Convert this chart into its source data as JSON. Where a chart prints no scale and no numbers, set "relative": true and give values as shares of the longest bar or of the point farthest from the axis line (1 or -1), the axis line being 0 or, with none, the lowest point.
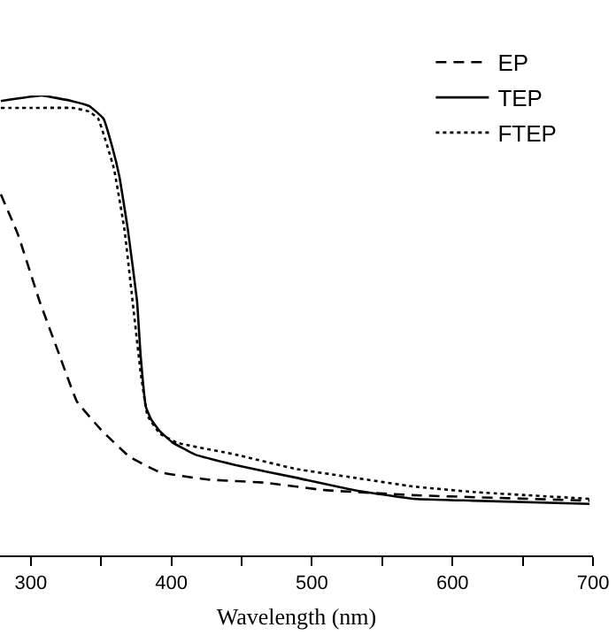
{
  "chart_data": {
    "type": "line",
    "relative": true,
    "xlabel": "Wavelength (nm)",
    "xlim": [
      278,
      700
    ],
    "xticks": [
      300,
      {
        "value": 350,
        "label": null
      },
      400,
      {
        "value": 450,
        "label": null
      },
      500,
      {
        "value": 550,
        "label": null
      },
      600,
      {
        "value": 650,
        "label": null
      },
      700
    ],
    "legend": "top right",
    "marker": "none",
    "series": [
      {
        "name": "EP",
        "color": "#000000",
        "line_style": "dashed",
        "x": [
          278.6,
          291,
          306,
          320,
          332.7,
          350,
          370,
          391.8,
          425.8,
          467,
          508.8,
          571.7,
          697.5
        ],
        "values": [
          0.785,
          0.696,
          0.554,
          0.438,
          0.335,
          0.273,
          0.215,
          0.181,
          0.165,
          0.158,
          0.142,
          0.131,
          0.119
        ]
      },
      {
        "name": "TEP",
        "color": "#000000",
        "line_style": "solid",
        "x": [
          278.6,
          307.5,
          329,
          341.5,
          351.6,
          357.9,
          363,
          369,
          375.5,
          378,
          381.8,
          385.5,
          391.8,
          400.6,
          417,
          446,
          488.7,
          530,
          571.7,
          614.5,
          697.5
        ],
        "values": [
          0.988,
          1.0,
          0.988,
          0.977,
          0.95,
          0.888,
          0.823,
          0.708,
          0.554,
          0.438,
          0.323,
          0.296,
          0.27,
          0.246,
          0.219,
          0.196,
          0.169,
          0.142,
          0.123,
          0.119,
          0.112
        ]
      },
      {
        "name": "FTEP",
        "color": "#000000",
        "line_style": "dotted",
        "x": [
          278.6,
          300,
          330,
          341.5,
          347.8,
          359,
          366.6,
          373,
          378,
          383,
          391.8,
          404,
          446,
          488.7,
          530,
          571.7,
          614.5,
          697.5
        ],
        "values": [
          0.973,
          0.973,
          0.973,
          0.965,
          0.95,
          0.842,
          0.708,
          0.535,
          0.4,
          0.304,
          0.265,
          0.245,
          0.219,
          0.188,
          0.169,
          0.15,
          0.138,
          0.123
        ]
      }
    ]
  }
}
